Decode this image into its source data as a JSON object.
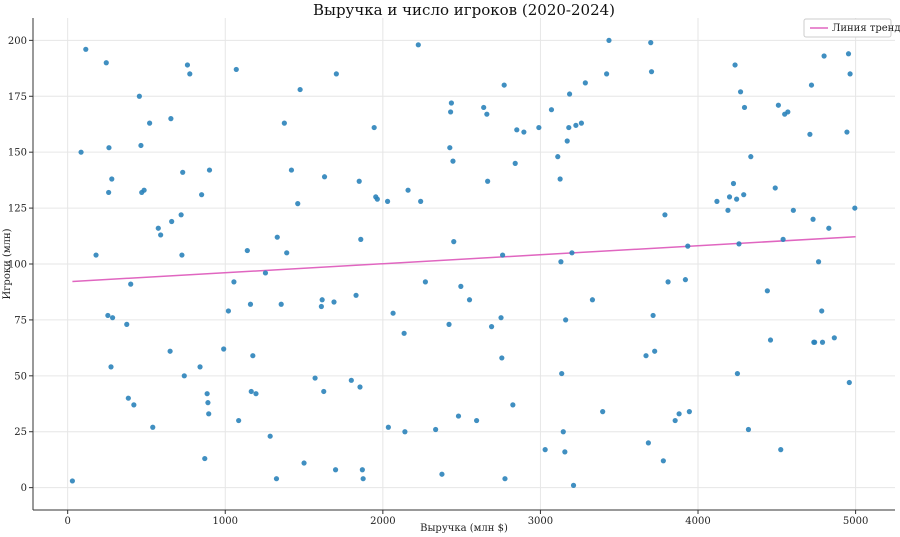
{
  "chart_data": {
    "type": "scatter",
    "title": "Выручка и число игроков (2020-2024)",
    "xlabel": "Выручка (млн $)",
    "ylabel": "Игроки (млн)",
    "xlim": [
      -220,
      5250
    ],
    "ylim": [
      -10,
      210
    ],
    "xticks": [
      0,
      1000,
      2000,
      3000,
      4000,
      5000
    ],
    "yticks": [
      0,
      25,
      50,
      75,
      100,
      125,
      150,
      175,
      200
    ],
    "grid": true,
    "legend_position": "top-right",
    "colors": {
      "points": "#2b83ba",
      "trend": "#e066c0"
    },
    "trend": {
      "name": "Линия тренда",
      "x": [
        30,
        5000
      ],
      "y": [
        92.2,
        112.2
      ]
    },
    "points": [
      [
        30,
        3
      ],
      [
        85,
        150
      ],
      [
        115,
        196
      ],
      [
        180,
        104
      ],
      [
        245,
        190
      ],
      [
        255,
        77
      ],
      [
        260,
        132
      ],
      [
        262,
        152
      ],
      [
        275,
        54
      ],
      [
        280,
        138
      ],
      [
        285,
        76
      ],
      [
        375,
        73
      ],
      [
        385,
        40
      ],
      [
        400,
        91
      ],
      [
        420,
        37
      ],
      [
        455,
        175
      ],
      [
        465,
        153
      ],
      [
        470,
        132
      ],
      [
        485,
        133
      ],
      [
        520,
        163
      ],
      [
        540,
        27
      ],
      [
        575,
        116
      ],
      [
        590,
        113
      ],
      [
        650,
        61
      ],
      [
        655,
        165
      ],
      [
        660,
        119
      ],
      [
        720,
        122
      ],
      [
        725,
        104
      ],
      [
        730,
        141
      ],
      [
        740,
        50
      ],
      [
        760,
        189
      ],
      [
        775,
        185
      ],
      [
        840,
        54
      ],
      [
        850,
        131
      ],
      [
        870,
        13
      ],
      [
        885,
        42
      ],
      [
        890,
        38
      ],
      [
        895,
        33
      ],
      [
        900,
        142
      ],
      [
        990,
        62
      ],
      [
        1020,
        79
      ],
      [
        1055,
        92
      ],
      [
        1070,
        187
      ],
      [
        1085,
        30
      ],
      [
        1140,
        106
      ],
      [
        1160,
        82
      ],
      [
        1165,
        43
      ],
      [
        1175,
        59
      ],
      [
        1195,
        42
      ],
      [
        1255,
        96
      ],
      [
        1285,
        23
      ],
      [
        1325,
        4
      ],
      [
        1330,
        112
      ],
      [
        1355,
        82
      ],
      [
        1375,
        163
      ],
      [
        1390,
        105
      ],
      [
        1420,
        142
      ],
      [
        1460,
        127
      ],
      [
        1475,
        178
      ],
      [
        1500,
        11
      ],
      [
        1570,
        49
      ],
      [
        1610,
        81
      ],
      [
        1615,
        84
      ],
      [
        1625,
        43
      ],
      [
        1630,
        139
      ],
      [
        1690,
        83
      ],
      [
        1700,
        8
      ],
      [
        1705,
        185
      ],
      [
        1800,
        48
      ],
      [
        1830,
        86
      ],
      [
        1850,
        137
      ],
      [
        1855,
        45
      ],
      [
        1860,
        111
      ],
      [
        1870,
        8
      ],
      [
        1875,
        4
      ],
      [
        1945,
        161
      ],
      [
        1955,
        130
      ],
      [
        1965,
        129
      ],
      [
        2030,
        128
      ],
      [
        2035,
        27
      ],
      [
        2065,
        78
      ],
      [
        2135,
        69
      ],
      [
        2140,
        25
      ],
      [
        2160,
        133
      ],
      [
        2225,
        198
      ],
      [
        2240,
        128
      ],
      [
        2270,
        92
      ],
      [
        2335,
        26
      ],
      [
        2375,
        6
      ],
      [
        2420,
        73
      ],
      [
        2425,
        152
      ],
      [
        2430,
        168
      ],
      [
        2435,
        172
      ],
      [
        2445,
        146
      ],
      [
        2450,
        110
      ],
      [
        2480,
        32
      ],
      [
        2495,
        90
      ],
      [
        2550,
        84
      ],
      [
        2595,
        30
      ],
      [
        2640,
        170
      ],
      [
        2660,
        167
      ],
      [
        2665,
        137
      ],
      [
        2690,
        72
      ],
      [
        2750,
        76
      ],
      [
        2755,
        58
      ],
      [
        2760,
        104
      ],
      [
        2770,
        180
      ],
      [
        2775,
        4
      ],
      [
        2825,
        37
      ],
      [
        2840,
        145
      ],
      [
        2850,
        160
      ],
      [
        2895,
        159
      ],
      [
        2990,
        161
      ],
      [
        3030,
        17
      ],
      [
        3070,
        169
      ],
      [
        3110,
        148
      ],
      [
        3125,
        138
      ],
      [
        3130,
        101
      ],
      [
        3135,
        51
      ],
      [
        3145,
        25
      ],
      [
        3155,
        16
      ],
      [
        3160,
        75
      ],
      [
        3170,
        155
      ],
      [
        3180,
        161
      ],
      [
        3185,
        176
      ],
      [
        3200,
        105
      ],
      [
        3210,
        1
      ],
      [
        3225,
        162
      ],
      [
        3260,
        163
      ],
      [
        3285,
        181
      ],
      [
        3330,
        84
      ],
      [
        3395,
        34
      ],
      [
        3420,
        185
      ],
      [
        3435,
        200
      ],
      [
        3670,
        59
      ],
      [
        3685,
        20
      ],
      [
        3700,
        199
      ],
      [
        3705,
        186
      ],
      [
        3715,
        77
      ],
      [
        3725,
        61
      ],
      [
        3780,
        12
      ],
      [
        3790,
        122
      ],
      [
        3810,
        92
      ],
      [
        3855,
        30
      ],
      [
        3880,
        33
      ],
      [
        3920,
        93
      ],
      [
        3935,
        108
      ],
      [
        3945,
        34
      ],
      [
        4120,
        128
      ],
      [
        4190,
        124
      ],
      [
        4200,
        130
      ],
      [
        4225,
        136
      ],
      [
        4235,
        189
      ],
      [
        4245,
        129
      ],
      [
        4250,
        51
      ],
      [
        4260,
        109
      ],
      [
        4270,
        177
      ],
      [
        4290,
        131
      ],
      [
        4295,
        170
      ],
      [
        4320,
        26
      ],
      [
        4335,
        148
      ],
      [
        4440,
        88
      ],
      [
        4460,
        66
      ],
      [
        4490,
        134
      ],
      [
        4510,
        171
      ],
      [
        4525,
        17
      ],
      [
        4540,
        111
      ],
      [
        4550,
        167
      ],
      [
        4570,
        168
      ],
      [
        4605,
        124
      ],
      [
        4710,
        158
      ],
      [
        4720,
        180
      ],
      [
        4730,
        120
      ],
      [
        4735,
        65
      ],
      [
        4740,
        65
      ],
      [
        4765,
        101
      ],
      [
        4785,
        79
      ],
      [
        4790,
        65
      ],
      [
        4800,
        193
      ],
      [
        4830,
        116
      ],
      [
        4865,
        67
      ],
      [
        4945,
        159
      ],
      [
        4955,
        194
      ],
      [
        4960,
        47
      ],
      [
        4965,
        185
      ],
      [
        4995,
        125
      ]
    ]
  }
}
